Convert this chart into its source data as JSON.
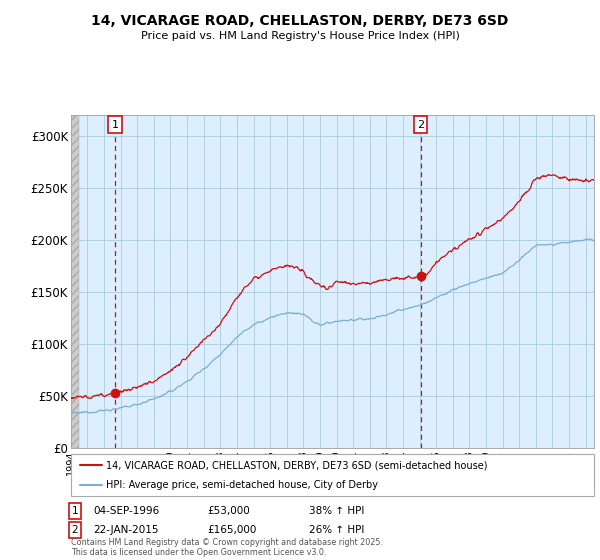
{
  "title_line1": "14, VICARAGE ROAD, CHELLASTON, DERBY, DE73 6SD",
  "title_line2": "Price paid vs. HM Land Registry's House Price Index (HPI)",
  "ylim": [
    0,
    320000
  ],
  "xlim_start": 1994.0,
  "xlim_end": 2025.5,
  "sale1_date": 1996.67,
  "sale1_price": 53000,
  "sale2_date": 2015.06,
  "sale2_price": 165000,
  "hpi_color": "#7aafd4",
  "price_color": "#cc1111",
  "legend_line1": "14, VICARAGE ROAD, CHELLASTON, DERBY, DE73 6SD (semi-detached house)",
  "legend_line2": "HPI: Average price, semi-detached house, City of Derby",
  "footnote": "Contains HM Land Registry data © Crown copyright and database right 2025.\nThis data is licensed under the Open Government Licence v3.0.",
  "background_color": "#ffffff",
  "plot_bg_color": "#ddeeff",
  "grid_color": "#aaccdd",
  "hatch_fill": "#cccccc",
  "ytick_labels": [
    "£0",
    "£50K",
    "£100K",
    "£150K",
    "£200K",
    "£250K",
    "£300K"
  ],
  "ytick_values": [
    0,
    50000,
    100000,
    150000,
    200000,
    250000,
    300000
  ],
  "hpi_anchors_year": [
    1994,
    1995,
    1996,
    1997,
    1998,
    1999,
    2000,
    2001,
    2002,
    2003,
    2004,
    2005,
    2006,
    2007,
    2008,
    2009,
    2010,
    2011,
    2012,
    2013,
    2014,
    2015,
    2016,
    2017,
    2018,
    2019,
    2020,
    2021,
    2022,
    2023,
    2024,
    2025
  ],
  "hpi_anchors_val": [
    33000,
    34500,
    36000,
    38000,
    42000,
    47000,
    54000,
    64000,
    76000,
    90000,
    107000,
    118000,
    125000,
    130000,
    128000,
    118000,
    122000,
    123000,
    124000,
    128000,
    133000,
    137000,
    144000,
    152000,
    158000,
    163000,
    168000,
    180000,
    195000,
    195000,
    198000,
    200000
  ],
  "price_anchors_year": [
    1994,
    1995,
    1996,
    1996.67,
    1997,
    1998,
    1999,
    2000,
    2001,
    2002,
    2003,
    2004,
    2005,
    2006,
    2007,
    2007.5,
    2008,
    2009,
    2009.5,
    2010,
    2011,
    2012,
    2013,
    2014,
    2015.06,
    2015.5,
    2016,
    2017,
    2018,
    2019,
    2020,
    2021,
    2022,
    2022.5,
    2023,
    2024,
    2025
  ],
  "price_anchors_val": [
    48000,
    49000,
    51000,
    53000,
    54000,
    58000,
    65000,
    74000,
    87000,
    103000,
    120000,
    145000,
    163000,
    170000,
    175000,
    173000,
    168000,
    156000,
    153000,
    160000,
    158000,
    158000,
    162000,
    163000,
    165000,
    168000,
    178000,
    190000,
    200000,
    210000,
    220000,
    237000,
    258000,
    262000,
    262000,
    258000,
    257000
  ]
}
